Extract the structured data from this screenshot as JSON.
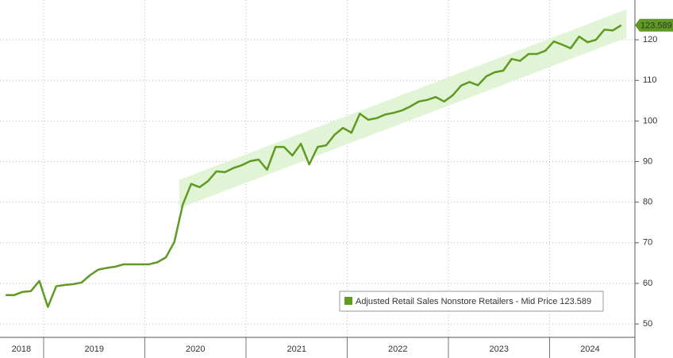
{
  "chart_data": {
    "type": "line",
    "x": [
      2018.625,
      2018.708,
      2018.792,
      2018.875,
      2018.958,
      2019.042,
      2019.125,
      2019.208,
      2019.292,
      2019.375,
      2019.458,
      2019.542,
      2019.625,
      2019.708,
      2019.792,
      2019.875,
      2019.958,
      2020.042,
      2020.125,
      2020.208,
      2020.292,
      2020.375,
      2020.458,
      2020.542,
      2020.625,
      2020.708,
      2020.792,
      2020.875,
      2020.958,
      2021.042,
      2021.125,
      2021.208,
      2021.292,
      2021.375,
      2021.458,
      2021.542,
      2021.625,
      2021.708,
      2021.792,
      2021.875,
      2021.958,
      2022.042,
      2022.125,
      2022.208,
      2022.292,
      2022.375,
      2022.458,
      2022.542,
      2022.625,
      2022.708,
      2022.792,
      2022.875,
      2022.958,
      2023.042,
      2023.125,
      2023.208,
      2023.292,
      2023.375,
      2023.458,
      2023.542,
      2023.625,
      2023.708,
      2023.792,
      2023.875,
      2023.958,
      2024.042,
      2024.125,
      2024.208,
      2024.292,
      2024.375,
      2024.458,
      2024.542,
      2024.625,
      2024.708
    ],
    "series": [
      {
        "name": "Adjusted Retail Sales Nonstore Retailers - Mid Price 123.589",
        "color": "#5f9a22",
        "values": [
          57.1,
          57.1,
          57.9,
          58.1,
          60.6,
          54.2,
          59.3,
          59.6,
          59.8,
          60.2,
          62.0,
          63.4,
          63.8,
          64.1,
          64.7,
          64.7,
          64.7,
          64.7,
          65.2,
          66.4,
          70.2,
          79.4,
          84.5,
          83.7,
          85.2,
          87.6,
          87.4,
          88.4,
          89.1,
          90.1,
          90.5,
          88.0,
          93.6,
          93.6,
          91.5,
          94.4,
          89.3,
          93.6,
          94.0,
          96.6,
          98.3,
          97.1,
          101.8,
          100.3,
          100.7,
          101.6,
          102.0,
          102.6,
          103.6,
          104.8,
          105.2,
          105.9,
          104.8,
          106.3,
          108.7,
          109.6,
          108.8,
          111.0,
          112.0,
          112.4,
          115.3,
          114.8,
          116.5,
          116.5,
          117.3,
          119.6,
          118.8,
          117.9,
          120.8,
          119.4,
          120.0,
          122.5,
          122.3,
          123.589
        ]
      }
    ],
    "last_label": "123.589",
    "xlim": [
      2018.569,
      2024.843
    ],
    "xticks": [
      {
        "value": 2018.78,
        "label": "2018"
      },
      {
        "value": 2019.5,
        "label": "2019"
      },
      {
        "value": 2020.5,
        "label": "2020"
      },
      {
        "value": 2021.5,
        "label": "2021"
      },
      {
        "value": 2022.5,
        "label": "2022"
      },
      {
        "value": 2023.5,
        "label": "2023"
      },
      {
        "value": 2024.4,
        "label": "2024"
      }
    ],
    "xseparators": [
      2019,
      2020,
      2021,
      2022,
      2023,
      2024
    ],
    "ylim": [
      46.7,
      129.8
    ],
    "yticks": [
      50,
      60,
      70,
      80,
      90,
      100,
      110,
      120
    ],
    "trend_band": {
      "x": [
        2020.34,
        2024.76
      ],
      "y": [
        82,
        124
      ],
      "halfwidth": 3.5,
      "color": "#dcf2cf"
    },
    "grid": true
  }
}
